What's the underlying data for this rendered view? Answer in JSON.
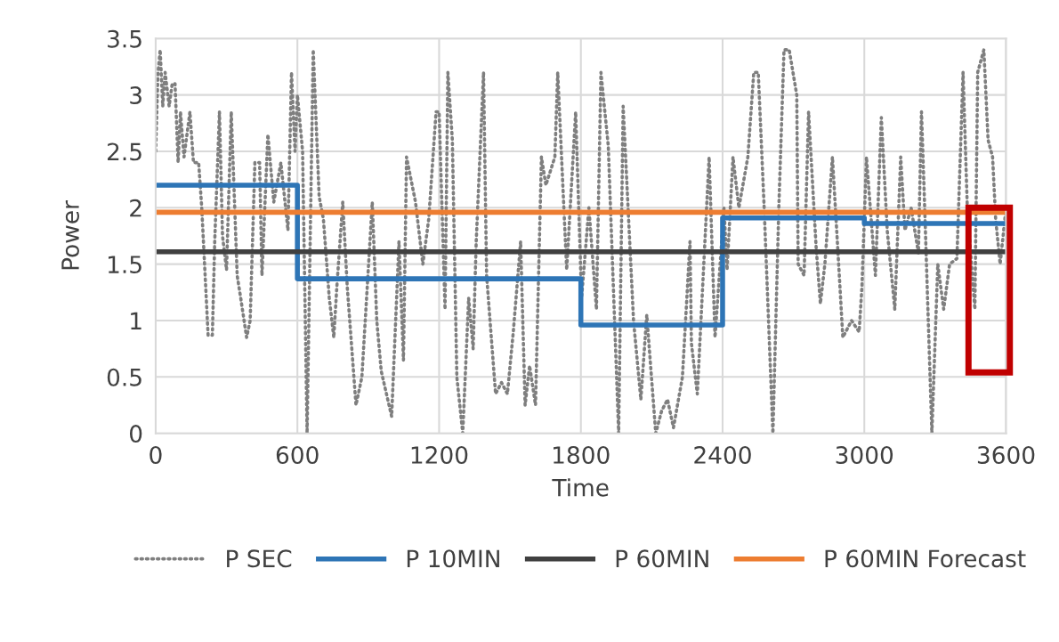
{
  "chart_data": {
    "type": "line",
    "xlabel": "Time",
    "ylabel": "Power",
    "xlim": [
      0,
      3600
    ],
    "xticks": [
      0,
      600,
      1200,
      1800,
      2400,
      3000,
      3600
    ],
    "ylim": [
      0,
      3.5
    ],
    "yticks": [
      0,
      0.5,
      1,
      1.5,
      2,
      2.5,
      3,
      3.5
    ],
    "grid": true,
    "legend": "bottom",
    "series": [
      {
        "name": "P SEC",
        "line_style": "dotted",
        "color": "#7f7f7f",
        "x": [
          0,
          10,
          19,
          30,
          40,
          57,
          70,
          82,
          95,
          105,
          120,
          145,
          160,
          182,
          195,
          207,
          222,
          240,
          250,
          270,
          283,
          300,
          320,
          345,
          360,
          385,
          400,
          420,
          440,
          450,
          475,
          500,
          530,
          560,
          575,
          590,
          600,
          622,
          641,
          667,
          692,
          710,
          735,
          754,
          767,
          792,
          811,
          848,
          873,
          917,
          936,
          955,
          999,
          1030,
          1049,
          1062,
          1100,
          1131,
          1156,
          1187,
          1200,
          1225,
          1237,
          1256,
          1275,
          1300,
          1325,
          1344,
          1357,
          1388,
          1401,
          1439,
          1464,
          1489,
          1514,
          1545,
          1564,
          1583,
          1608,
          1633,
          1652,
          1690,
          1702,
          1740,
          1778,
          1803,
          1834,
          1866,
          1885,
          1916,
          1960,
          1979,
          2023,
          2054,
          2079,
          2117,
          2142,
          2167,
          2192,
          2230,
          2262,
          2268,
          2293,
          2343,
          2368,
          2406,
          2419,
          2444,
          2469,
          2507,
          2532,
          2551,
          2576,
          2613,
          2638,
          2660,
          2682,
          2714,
          2720,
          2745,
          2764,
          2796,
          2814,
          2833,
          2865,
          2890,
          2909,
          2946,
          2978,
          2990,
          3009,
          3047,
          3072,
          3097,
          3129,
          3154,
          3172,
          3198,
          3229,
          3242,
          3254,
          3286,
          3311,
          3336,
          3361,
          3392,
          3418,
          3436,
          3468,
          3480,
          3506,
          3524,
          3543,
          3556,
          3575,
          3600
        ],
        "values": [
          2.5,
          3.2,
          3.4,
          2.9,
          3.2,
          2.9,
          3.1,
          3.1,
          2.4,
          2.85,
          2.45,
          2.85,
          2.4,
          2.4,
          2.0,
          1.5,
          0.87,
          0.87,
          1.7,
          2.85,
          1.75,
          1.45,
          2.85,
          1.4,
          1.2,
          0.85,
          1.0,
          2.4,
          2.4,
          1.4,
          2.65,
          2.05,
          2.4,
          1.8,
          3.2,
          2.5,
          3.0,
          2.5,
          0,
          3.4,
          2.1,
          1.9,
          1.2,
          0.85,
          1.3,
          2.05,
          1.3,
          0.25,
          0.5,
          2.05,
          1.0,
          0.55,
          0.15,
          1.7,
          0.65,
          2.45,
          2.05,
          1.5,
          1.9,
          2.85,
          2.85,
          1.1,
          3.2,
          2.6,
          0.5,
          0,
          1.2,
          0.75,
          1.7,
          3.2,
          1.4,
          0.35,
          0.45,
          0.35,
          0.9,
          1.7,
          0.25,
          0.6,
          0.25,
          2.45,
          2.2,
          2.45,
          3.2,
          1.45,
          2.85,
          1.2,
          2.0,
          1.1,
          3.2,
          2.55,
          0,
          2.9,
          1.0,
          0.3,
          1.05,
          0,
          0.2,
          0.3,
          0.05,
          0.5,
          1.7,
          0.8,
          0.35,
          2.45,
          0.85,
          2.0,
          1.45,
          2.45,
          2.0,
          2.45,
          3.2,
          3.2,
          2.0,
          0,
          2.0,
          3.4,
          3.4,
          3.0,
          1.5,
          1.4,
          2.85,
          1.65,
          1.15,
          1.5,
          2.45,
          1.55,
          0.85,
          1.0,
          0.9,
          1.3,
          2.45,
          1.4,
          2.8,
          1.8,
          1.1,
          2.45,
          1.8,
          2.0,
          1.6,
          2.85,
          2.1,
          0,
          1.5,
          1.1,
          1.5,
          1.55,
          3.2,
          2.0,
          1.1,
          3.2,
          3.4,
          2.6,
          2.45,
          1.9,
          1.5,
          2.0
        ]
      },
      {
        "name": "P 10MIN",
        "type": "step",
        "line_style": "solid",
        "color": "#2e75b6",
        "x": [
          0,
          600,
          1200,
          1800,
          2400,
          3000,
          3600
        ],
        "values": [
          2.2,
          1.37,
          1.37,
          0.96,
          1.91,
          1.86,
          1.86
        ]
      },
      {
        "name": "P 60MIN",
        "line_style": "solid",
        "color": "#404040",
        "x": [
          0,
          3600
        ],
        "values": [
          1.61,
          1.61
        ]
      },
      {
        "name": "P 60MIN Forecast",
        "line_style": "solid",
        "color": "#ed7d31",
        "x": [
          0,
          3600
        ],
        "values": [
          1.96,
          1.96
        ]
      }
    ]
  }
}
